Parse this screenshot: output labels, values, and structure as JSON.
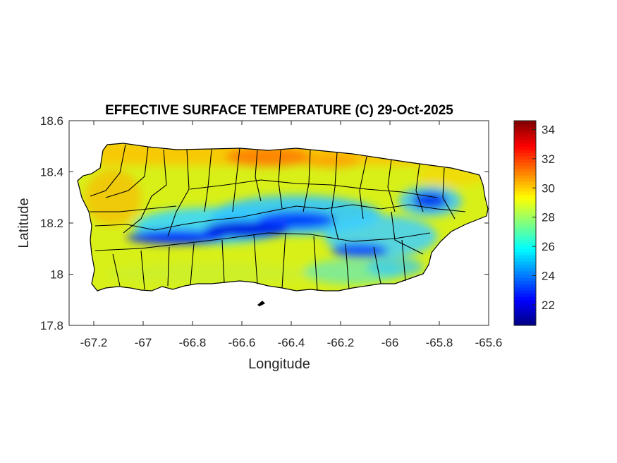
{
  "chart_data": {
    "type": "heatmap",
    "title": "EFFECTIVE SURFACE TEMPERATURE (C) 29-Oct-2025",
    "xlabel": "Longitude",
    "ylabel": "Latitude",
    "xlim": [
      -67.3,
      -65.6
    ],
    "ylim": [
      17.8,
      18.6
    ],
    "xticks": [
      -67.2,
      -67,
      -66.8,
      -66.6,
      -66.4,
      -66.2,
      -66,
      -65.8,
      -65.6
    ],
    "xtick_labels": [
      "-67.2",
      "-67",
      "-66.8",
      "-66.6",
      "-66.4",
      "-66.2",
      "-66",
      "-65.8",
      "-65.6"
    ],
    "yticks": [
      17.8,
      18,
      18.2,
      18.4,
      18.6
    ],
    "ytick_labels": [
      "17.8",
      "18",
      "18.2",
      "18.4",
      "18.6"
    ],
    "colorbar": {
      "colormap": "jet",
      "range": [
        20.6,
        34.6
      ],
      "ticks": [
        22,
        24,
        26,
        28,
        30,
        32,
        34
      ],
      "tick_labels": [
        "22",
        "24",
        "26",
        "28",
        "30",
        "32",
        "34"
      ]
    },
    "grid": false,
    "field_description": {
      "coast_warm_north_C": 30,
      "coast_south_C": 28,
      "west_C": 29,
      "central_ridge_min_C": 21,
      "east_peak_min_C": 22.5
    },
    "colors": {
      "boundary": "#000000",
      "axis": "#262626"
    }
  }
}
